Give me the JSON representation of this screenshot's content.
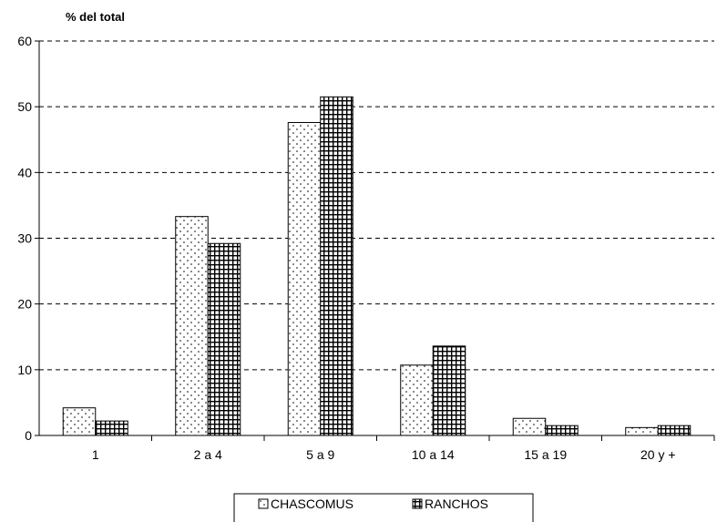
{
  "chart_data": {
    "type": "bar",
    "ylabel": "% del total",
    "categories": [
      "1",
      "2 a 4",
      "5 a 9",
      "10 a 14",
      "15 a 19",
      "20 y +"
    ],
    "series": [
      {
        "name": "CHASCOMUS",
        "values": [
          4.2,
          33.3,
          47.6,
          10.7,
          2.6,
          1.2
        ],
        "pattern": "dots"
      },
      {
        "name": "RANCHOS",
        "values": [
          2.2,
          29.2,
          51.5,
          13.6,
          1.5,
          1.5
        ],
        "pattern": "grid"
      }
    ],
    "ylim": [
      0,
      60
    ],
    "yticks": [
      0,
      10,
      20,
      30,
      40,
      50,
      60
    ],
    "grid": true,
    "grid_style": "dashed",
    "legend_position": "bottom"
  }
}
